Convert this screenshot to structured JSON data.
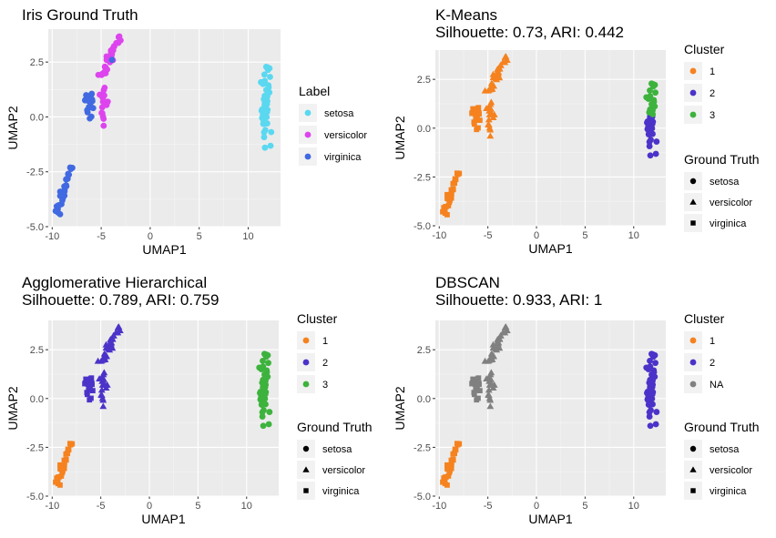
{
  "colors": {
    "panel_bg": "#EBEBEB",
    "grid_major": "#FFFFFF",
    "tick_text": "#4D4D4D",
    "setosa": "#5AD8F0",
    "versicolor": "#DD44EE",
    "virginica": "#4169E1",
    "cluster_orange": "#F5821F",
    "cluster_purple": "#4B33C9",
    "cluster_green": "#3DB33D",
    "cluster_na": "#808080"
  },
  "chart_data": [
    {
      "type": "scatter",
      "title": "Iris Ground Truth",
      "subtitle": "",
      "xlabel": "UMAP1",
      "ylabel": "UMAP2",
      "xticks": [
        "-10",
        "-5",
        "0",
        "5",
        "10"
      ],
      "yticks": [
        "-5.0",
        "-2.5",
        "0.0",
        "2.5"
      ],
      "xlim": [
        -10.4,
        13.3
      ],
      "ylim": [
        -5.0,
        4.0
      ],
      "grid": true,
      "color_legend": {
        "title": "Label",
        "entries": [
          {
            "label": "setosa",
            "color": "#5AD8F0"
          },
          {
            "label": "versicolor",
            "color": "#DD44EE"
          },
          {
            "label": "virginica",
            "color": "#4169E1"
          }
        ]
      },
      "shape_legend": null,
      "groups": [
        {
          "species": "setosa",
          "color": "#5AD8F0",
          "shape": "circle"
        },
        {
          "species": "versicolor",
          "color": "#DD44EE",
          "shape": "circle"
        },
        {
          "species": "virginica",
          "color": "#4169E1",
          "shape": "circle"
        }
      ]
    },
    {
      "type": "scatter",
      "title": "K-Means",
      "subtitle": "Silhouette: 0.73, ARI: 0.442",
      "xlabel": "UMAP1",
      "ylabel": "UMAP2",
      "xticks": [
        "-10",
        "-5",
        "0",
        "5",
        "10"
      ],
      "yticks": [
        "-5.0",
        "-2.5",
        "0.0",
        "2.5"
      ],
      "xlim": [
        -10.4,
        13.3
      ],
      "ylim": [
        -5.0,
        4.0
      ],
      "grid": true,
      "color_legend": {
        "title": "Cluster",
        "entries": [
          {
            "label": "1",
            "color": "#F5821F"
          },
          {
            "label": "2",
            "color": "#4B33C9"
          },
          {
            "label": "3",
            "color": "#3DB33D"
          }
        ]
      },
      "shape_legend": {
        "title": "Ground Truth",
        "entries": [
          {
            "label": "setosa",
            "shape": "circle"
          },
          {
            "label": "versicolor",
            "shape": "triangle"
          },
          {
            "label": "virginica",
            "shape": "square"
          }
        ]
      },
      "groups": [
        {
          "species": "setosa",
          "color": "#4B33C9",
          "shape": "circle"
        },
        {
          "species": "setosa",
          "color": "#3DB33D",
          "shape": "circle"
        },
        {
          "species": "versicolor",
          "color": "#F5821F",
          "shape": "triangle"
        },
        {
          "species": "virginica",
          "color": "#F5821F",
          "shape": "square"
        }
      ]
    },
    {
      "type": "scatter",
      "title": "Agglomerative Hierarchical",
      "subtitle": "Silhouette: 0.789, ARI: 0.759",
      "xlabel": "UMAP1",
      "ylabel": "UMAP2",
      "xticks": [
        "-10",
        "-5",
        "0",
        "5",
        "10"
      ],
      "yticks": [
        "-5.0",
        "-2.5",
        "0.0",
        "2.5"
      ],
      "xlim": [
        -10.4,
        13.3
      ],
      "ylim": [
        -5.0,
        4.0
      ],
      "grid": true,
      "color_legend": {
        "title": "Cluster",
        "entries": [
          {
            "label": "1",
            "color": "#F5821F"
          },
          {
            "label": "2",
            "color": "#4B33C9"
          },
          {
            "label": "3",
            "color": "#3DB33D"
          }
        ]
      },
      "shape_legend": {
        "title": "Ground Truth",
        "entries": [
          {
            "label": "setosa",
            "shape": "circle"
          },
          {
            "label": "versicolor",
            "shape": "triangle"
          },
          {
            "label": "virginica",
            "shape": "square"
          }
        ]
      },
      "groups": [
        {
          "species": "setosa",
          "color": "#3DB33D",
          "shape": "circle"
        },
        {
          "species": "versicolor",
          "color": "#4B33C9",
          "shape": "triangle"
        },
        {
          "species": "virginica",
          "color": "#4B33C9",
          "shape": "square"
        },
        {
          "species": "virginica",
          "color": "#F5821F",
          "shape": "square"
        }
      ]
    },
    {
      "type": "scatter",
      "title": "DBSCAN",
      "subtitle": "Silhouette: 0.933, ARI: 1",
      "xlabel": "UMAP1",
      "ylabel": "UMAP2",
      "xticks": [
        "-10",
        "-5",
        "0",
        "5",
        "10"
      ],
      "yticks": [
        "-5.0",
        "-2.5",
        "0.0",
        "2.5"
      ],
      "xlim": [
        -10.4,
        13.3
      ],
      "ylim": [
        -5.0,
        4.0
      ],
      "grid": true,
      "color_legend": {
        "title": "Cluster",
        "entries": [
          {
            "label": "1",
            "color": "#F5821F"
          },
          {
            "label": "2",
            "color": "#4B33C9"
          },
          {
            "label": "NA",
            "color": "#808080"
          }
        ]
      },
      "shape_legend": {
        "title": "Ground Truth",
        "entries": [
          {
            "label": "setosa",
            "shape": "circle"
          },
          {
            "label": "versicolor",
            "shape": "triangle"
          },
          {
            "label": "virginica",
            "shape": "square"
          }
        ]
      },
      "groups": [
        {
          "species": "setosa",
          "color": "#4B33C9",
          "shape": "circle"
        },
        {
          "species": "versicolor",
          "color": "#808080",
          "shape": "triangle"
        },
        {
          "species": "virginica",
          "color": "#808080",
          "shape": "square"
        },
        {
          "species": "virginica",
          "color": "#F5821F",
          "shape": "square"
        }
      ]
    }
  ]
}
